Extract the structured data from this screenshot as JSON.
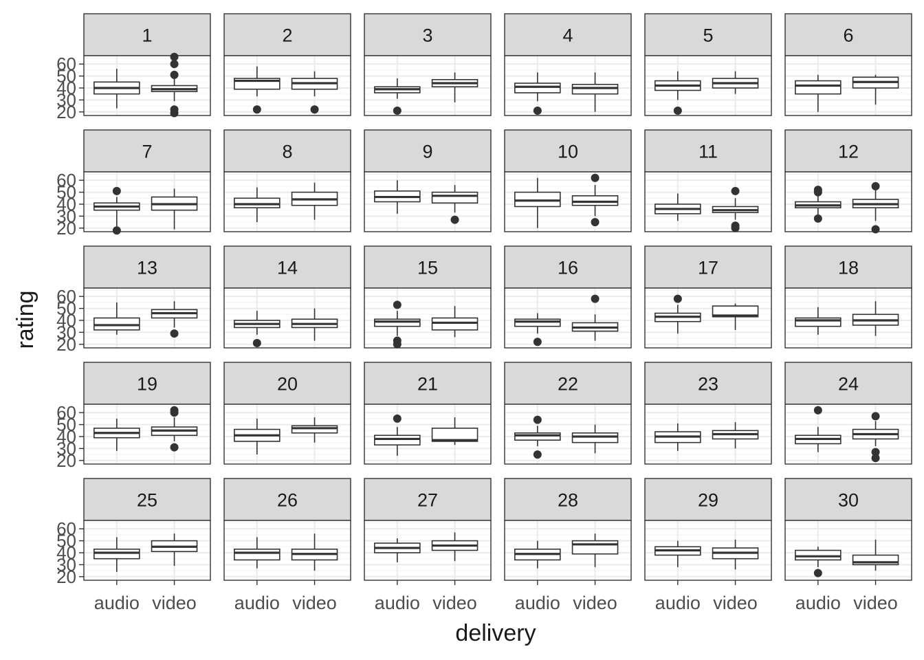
{
  "chart_data": {
    "type": "boxplot",
    "layout": "facet-grid",
    "facet_rows": 5,
    "facet_cols": 6,
    "xlabel": "delivery",
    "ylabel": "rating",
    "categories": [
      "audio",
      "video"
    ],
    "yticks": [
      20,
      30,
      40,
      50,
      60
    ],
    "ylim": [
      17,
      67
    ],
    "grid": true,
    "colors": {
      "strip": "#d9d9d9",
      "grid_major": "#ebebeb",
      "grid_minor": "#f4f4f4",
      "box": "#333333",
      "text": "#1a1a1a",
      "tick_text": "#4d4d4d"
    },
    "facets": [
      {
        "label": "1",
        "boxes": [
          {
            "min": 23,
            "q1": 35,
            "median": 40,
            "q3": 45,
            "max": 56,
            "outliers": []
          },
          {
            "min": 29,
            "q1": 37,
            "median": 39,
            "q3": 42,
            "max": 48,
            "outliers": [
              60,
              66,
              51,
              22,
              19
            ]
          }
        ]
      },
      {
        "label": "2",
        "boxes": [
          {
            "min": 33,
            "q1": 39,
            "median": 46,
            "q3": 48,
            "max": 58,
            "outliers": [
              22
            ]
          },
          {
            "min": 33,
            "q1": 39,
            "median": 44,
            "q3": 48,
            "max": 54,
            "outliers": [
              22
            ]
          }
        ]
      },
      {
        "label": "3",
        "boxes": [
          {
            "min": 31,
            "q1": 36,
            "median": 39,
            "q3": 41,
            "max": 48,
            "outliers": [
              21
            ]
          },
          {
            "min": 28,
            "q1": 41,
            "median": 44,
            "q3": 47,
            "max": 53,
            "outliers": []
          }
        ]
      },
      {
        "label": "4",
        "boxes": [
          {
            "min": 29,
            "q1": 36,
            "median": 41,
            "q3": 44,
            "max": 53,
            "outliers": [
              21
            ]
          },
          {
            "min": 20,
            "q1": 35,
            "median": 40,
            "q3": 43,
            "max": 53,
            "outliers": []
          }
        ]
      },
      {
        "label": "5",
        "boxes": [
          {
            "min": 30,
            "q1": 38,
            "median": 42,
            "q3": 46,
            "max": 54,
            "outliers": [
              21
            ]
          },
          {
            "min": 35,
            "q1": 40,
            "median": 44,
            "q3": 48,
            "max": 54,
            "outliers": []
          }
        ]
      },
      {
        "label": "6",
        "boxes": [
          {
            "min": 20,
            "q1": 35,
            "median": 42,
            "q3": 46,
            "max": 51,
            "outliers": []
          },
          {
            "min": 26,
            "q1": 40,
            "median": 45,
            "q3": 49,
            "max": 51,
            "outliers": []
          }
        ]
      },
      {
        "label": "7",
        "boxes": [
          {
            "min": 21,
            "q1": 35,
            "median": 38,
            "q3": 41,
            "max": 46,
            "outliers": [
              51,
              18
            ]
          },
          {
            "min": 19,
            "q1": 35,
            "median": 40,
            "q3": 46,
            "max": 53,
            "outliers": []
          }
        ]
      },
      {
        "label": "8",
        "boxes": [
          {
            "min": 25,
            "q1": 37,
            "median": 40,
            "q3": 45,
            "max": 54,
            "outliers": []
          },
          {
            "min": 27,
            "q1": 39,
            "median": 44,
            "q3": 50,
            "max": 58,
            "outliers": []
          }
        ]
      },
      {
        "label": "9",
        "boxes": [
          {
            "min": 32,
            "q1": 42,
            "median": 46,
            "q3": 51,
            "max": 60,
            "outliers": []
          },
          {
            "min": 33,
            "q1": 41,
            "median": 47,
            "q3": 50,
            "max": 56,
            "outliers": [
              27
            ]
          }
        ]
      },
      {
        "label": "10",
        "boxes": [
          {
            "min": 20,
            "q1": 38,
            "median": 43,
            "q3": 50,
            "max": 62,
            "outliers": []
          },
          {
            "min": 30,
            "q1": 39,
            "median": 42,
            "q3": 47,
            "max": 56,
            "outliers": [
              62,
              25
            ]
          }
        ]
      },
      {
        "label": "11",
        "boxes": [
          {
            "min": 26,
            "q1": 32,
            "median": 36,
            "q3": 40,
            "max": 49,
            "outliers": []
          },
          {
            "min": 27,
            "q1": 33,
            "median": 35,
            "q3": 38,
            "max": 45,
            "outliers": [
              51,
              22,
              20
            ]
          }
        ]
      },
      {
        "label": "12",
        "boxes": [
          {
            "min": 30,
            "q1": 37,
            "median": 39,
            "q3": 42,
            "max": 48,
            "outliers": [
              52,
              50,
              28
            ]
          },
          {
            "min": 26,
            "q1": 37,
            "median": 40,
            "q3": 44,
            "max": 52,
            "outliers": [
              55,
              19
            ]
          }
        ]
      },
      {
        "label": "13",
        "boxes": [
          {
            "min": 28,
            "q1": 32,
            "median": 36,
            "q3": 42,
            "max": 55,
            "outliers": []
          },
          {
            "min": 34,
            "q1": 42,
            "median": 46,
            "q3": 49,
            "max": 56,
            "outliers": [
              29
            ]
          }
        ]
      },
      {
        "label": "14",
        "boxes": [
          {
            "min": 28,
            "q1": 34,
            "median": 37,
            "q3": 40,
            "max": 48,
            "outliers": [
              21
            ]
          },
          {
            "min": 23,
            "q1": 34,
            "median": 37,
            "q3": 41,
            "max": 50,
            "outliers": []
          }
        ]
      },
      {
        "label": "15",
        "boxes": [
          {
            "min": 27,
            "q1": 35,
            "median": 39,
            "q3": 41,
            "max": 48,
            "outliers": [
              53,
              23,
              20
            ]
          },
          {
            "min": 26,
            "q1": 32,
            "median": 38,
            "q3": 42,
            "max": 52,
            "outliers": []
          }
        ]
      },
      {
        "label": "16",
        "boxes": [
          {
            "min": 29,
            "q1": 35,
            "median": 39,
            "q3": 41,
            "max": 46,
            "outliers": [
              22
            ]
          },
          {
            "min": 23,
            "q1": 31,
            "median": 34,
            "q3": 38,
            "max": 45,
            "outliers": [
              58
            ]
          }
        ]
      },
      {
        "label": "17",
        "boxes": [
          {
            "min": 29,
            "q1": 39,
            "median": 43,
            "q3": 46,
            "max": 53,
            "outliers": [
              58
            ]
          },
          {
            "min": 32,
            "q1": 43,
            "median": 44,
            "q3": 52,
            "max": 54,
            "outliers": []
          }
        ]
      },
      {
        "label": "18",
        "boxes": [
          {
            "min": 28,
            "q1": 35,
            "median": 40,
            "q3": 42,
            "max": 51,
            "outliers": []
          },
          {
            "min": 27,
            "q1": 36,
            "median": 40,
            "q3": 45,
            "max": 56,
            "outliers": []
          }
        ]
      },
      {
        "label": "19",
        "boxes": [
          {
            "min": 28,
            "q1": 39,
            "median": 43,
            "q3": 47,
            "max": 55,
            "outliers": []
          },
          {
            "min": 36,
            "q1": 41,
            "median": 45,
            "q3": 48,
            "max": 56,
            "outliers": [
              62,
              60,
              31
            ]
          }
        ]
      },
      {
        "label": "20",
        "boxes": [
          {
            "min": 25,
            "q1": 36,
            "median": 41,
            "q3": 46,
            "max": 55,
            "outliers": []
          },
          {
            "min": 35,
            "q1": 43,
            "median": 47,
            "q3": 49,
            "max": 56,
            "outliers": []
          }
        ]
      },
      {
        "label": "21",
        "boxes": [
          {
            "min": 24,
            "q1": 33,
            "median": 38,
            "q3": 41,
            "max": 48,
            "outliers": [
              55
            ]
          },
          {
            "min": 33,
            "q1": 36,
            "median": 37,
            "q3": 47,
            "max": 56,
            "outliers": []
          }
        ]
      },
      {
        "label": "22",
        "boxes": [
          {
            "min": 32,
            "q1": 37,
            "median": 41,
            "q3": 43,
            "max": 49,
            "outliers": [
              54,
              25
            ]
          },
          {
            "min": 26,
            "q1": 35,
            "median": 40,
            "q3": 43,
            "max": 50,
            "outliers": []
          }
        ]
      },
      {
        "label": "23",
        "boxes": [
          {
            "min": 28,
            "q1": 35,
            "median": 40,
            "q3": 44,
            "max": 51,
            "outliers": []
          },
          {
            "min": 30,
            "q1": 38,
            "median": 42,
            "q3": 45,
            "max": 52,
            "outliers": []
          }
        ]
      },
      {
        "label": "24",
        "boxes": [
          {
            "min": 27,
            "q1": 34,
            "median": 38,
            "q3": 41,
            "max": 48,
            "outliers": [
              62
            ]
          },
          {
            "min": 32,
            "q1": 38,
            "median": 42,
            "q3": 46,
            "max": 53,
            "outliers": [
              57,
              27,
              22
            ]
          }
        ]
      },
      {
        "label": "25",
        "boxes": [
          {
            "min": 24,
            "q1": 35,
            "median": 40,
            "q3": 43,
            "max": 53,
            "outliers": []
          },
          {
            "min": 29,
            "q1": 41,
            "median": 45,
            "q3": 50,
            "max": 56,
            "outliers": []
          }
        ]
      },
      {
        "label": "26",
        "boxes": [
          {
            "min": 27,
            "q1": 34,
            "median": 40,
            "q3": 43,
            "max": 53,
            "outliers": []
          },
          {
            "min": 25,
            "q1": 34,
            "median": 39,
            "q3": 43,
            "max": 56,
            "outliers": []
          }
        ]
      },
      {
        "label": "27",
        "boxes": [
          {
            "min": 32,
            "q1": 40,
            "median": 44,
            "q3": 48,
            "max": 52,
            "outliers": []
          },
          {
            "min": 33,
            "q1": 42,
            "median": 46,
            "q3": 50,
            "max": 57,
            "outliers": []
          }
        ]
      },
      {
        "label": "28",
        "boxes": [
          {
            "min": 27,
            "q1": 34,
            "median": 39,
            "q3": 43,
            "max": 50,
            "outliers": []
          },
          {
            "min": 28,
            "q1": 39,
            "median": 47,
            "q3": 50,
            "max": 56,
            "outliers": []
          }
        ]
      },
      {
        "label": "29",
        "boxes": [
          {
            "min": 28,
            "q1": 38,
            "median": 42,
            "q3": 45,
            "max": 50,
            "outliers": []
          },
          {
            "min": 26,
            "q1": 35,
            "median": 40,
            "q3": 44,
            "max": 51,
            "outliers": []
          }
        ]
      },
      {
        "label": "30",
        "boxes": [
          {
            "min": 28,
            "q1": 34,
            "median": 37,
            "q3": 42,
            "max": 45,
            "outliers": [
              23
            ]
          },
          {
            "min": 25,
            "q1": 30,
            "median": 32,
            "q3": 38,
            "max": 51,
            "outliers": []
          }
        ]
      }
    ]
  }
}
